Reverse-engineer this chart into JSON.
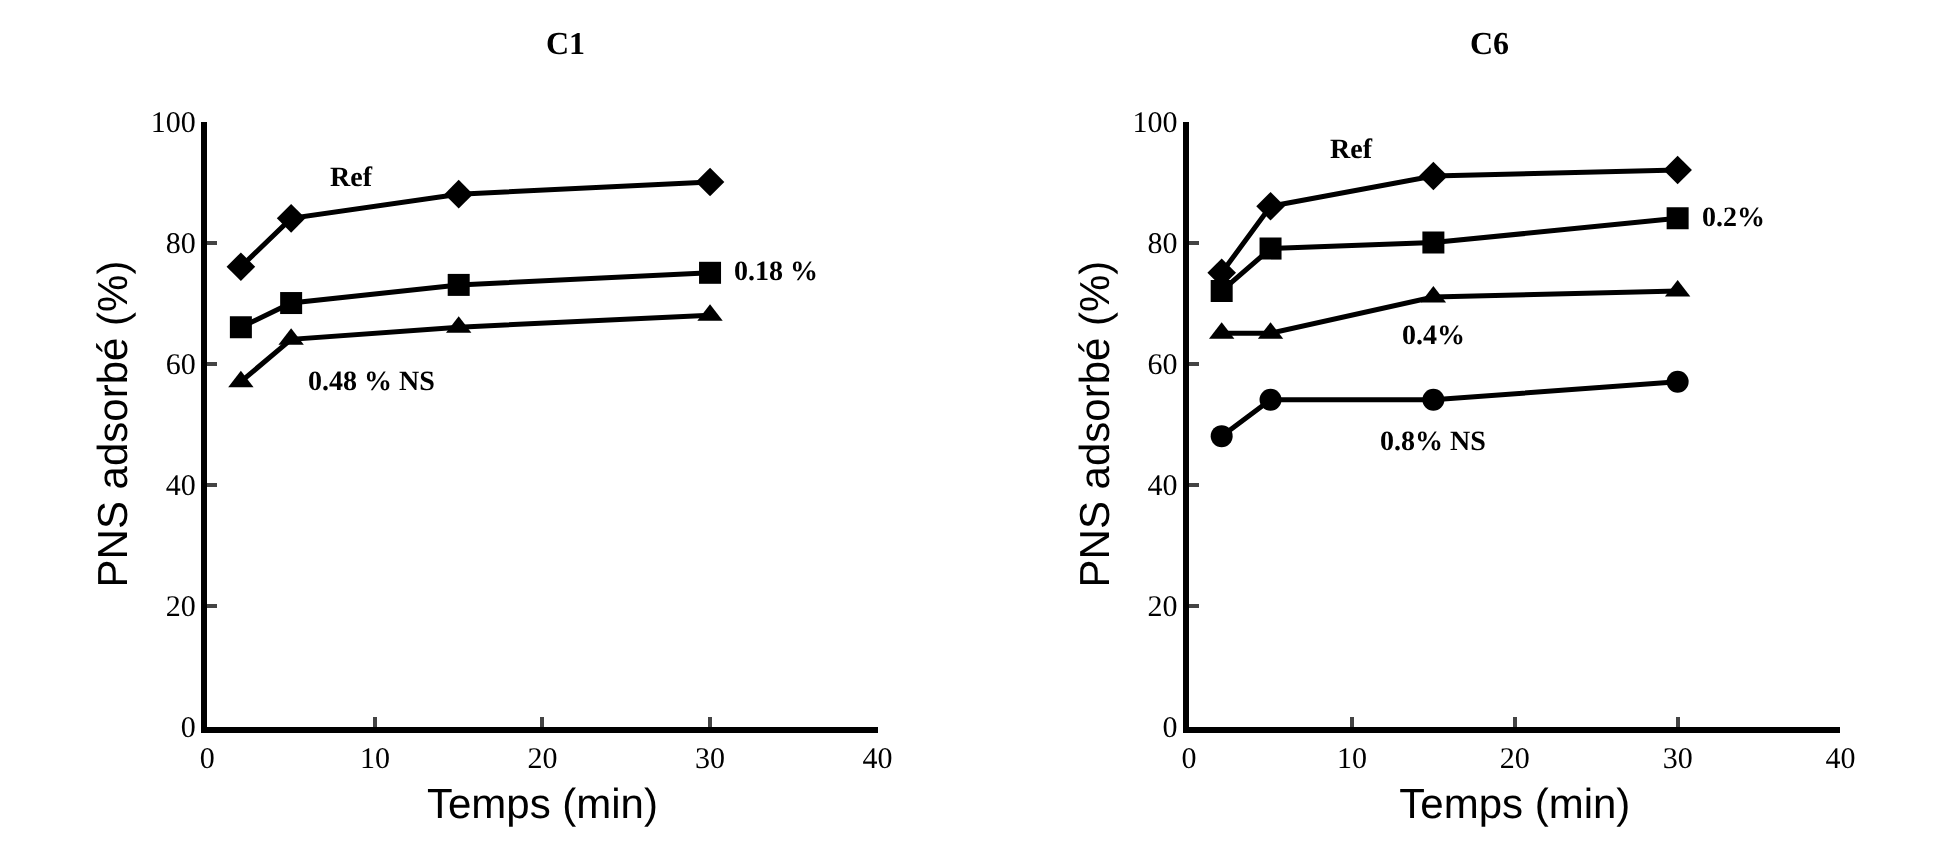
{
  "chart_data": [
    {
      "type": "line",
      "title": "C1",
      "xlabel": "Temps (min)",
      "ylabel": "PNS adsorbé (%)",
      "xlim": [
        0,
        40
      ],
      "xticks": [
        0,
        10,
        20,
        30,
        40
      ],
      "ylim": [
        0,
        100
      ],
      "yticks": [
        0,
        20,
        40,
        60,
        80,
        100
      ],
      "legend": false,
      "line_style": "solid",
      "x": [
        2,
        5,
        15,
        30
      ],
      "series": [
        {
          "name": "Ref",
          "color": "#000000",
          "marker": "diamond",
          "values": [
            76,
            84,
            88,
            90
          ]
        },
        {
          "name": "0.18 %",
          "color": "#000000",
          "marker": "square",
          "values": [
            66,
            70,
            73,
            75
          ]
        },
        {
          "name": "0.48 % NS",
          "color": "#000000",
          "marker": "triangle",
          "values": [
            57,
            64,
            66,
            68
          ]
        }
      ]
    },
    {
      "type": "line",
      "title": "C6",
      "xlabel": "Temps (min)",
      "ylabel": "PNS adsorbé (%)",
      "xlim": [
        0,
        40
      ],
      "xticks": [
        0,
        10,
        20,
        30,
        40
      ],
      "ylim": [
        0,
        100
      ],
      "yticks": [
        0,
        20,
        40,
        60,
        80,
        100
      ],
      "legend": false,
      "line_style": "solid",
      "x": [
        2,
        5,
        15,
        30
      ],
      "series": [
        {
          "name": "Ref",
          "color": "#000000",
          "marker": "diamond",
          "values": [
            75,
            86,
            91,
            92
          ]
        },
        {
          "name": "0.2%",
          "color": "#000000",
          "marker": "square",
          "values": [
            72,
            79,
            80,
            84
          ]
        },
        {
          "name": "0.4%",
          "color": "#000000",
          "marker": "triangle",
          "values": [
            65,
            65,
            71,
            72
          ]
        },
        {
          "name": "0.8% NS",
          "color": "#000000",
          "marker": "circle",
          "values": [
            48,
            54,
            54,
            57
          ]
        }
      ]
    }
  ]
}
